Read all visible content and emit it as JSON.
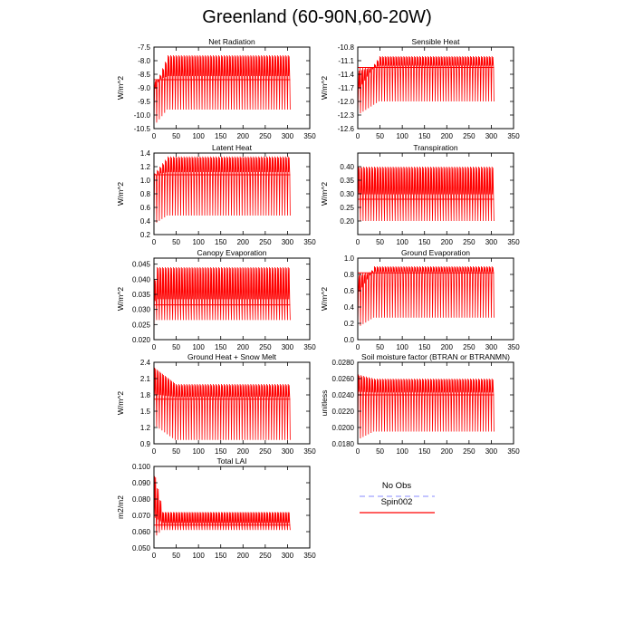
{
  "title": "Greenland (60-90N,60-20W)",
  "colors": {
    "spin": "#ff0000",
    "obs": "#9fa0ff",
    "axis": "#000000"
  },
  "legend": {
    "items": [
      {
        "name": "No Obs",
        "style": "dashed",
        "color": "#9fa0ff"
      },
      {
        "name": "Spin002",
        "style": "solid",
        "color": "#ff0000"
      }
    ]
  },
  "chart_data": [
    {
      "type": "line",
      "title": "Net Radiation",
      "ylabel": "W/m^2",
      "xlim": [
        0,
        350
      ],
      "ylim": [
        -10.5,
        -7.5
      ],
      "xticks": [
        0,
        50,
        100,
        150,
        200,
        250,
        300,
        350
      ],
      "yticks": [
        -10.5,
        -10.0,
        -9.5,
        -9.0,
        -8.5,
        -8.0,
        -7.5
      ],
      "ytick_labels": [
        "-10.5",
        "-10.0",
        "-9.5",
        "-9.0",
        "-8.5",
        "-8.0",
        "-7.5"
      ],
      "series": [
        {
          "x_end": 306,
          "n_cycles": 51,
          "start_low": -10.4,
          "start_high": -9.0,
          "final_low": -9.8,
          "final_high": -7.8,
          "mean_line": -8.7,
          "spin_cycles": 5
        }
      ]
    },
    {
      "type": "line",
      "title": "Sensible Heat",
      "ylabel": "W/m^2",
      "xlim": [
        0,
        350
      ],
      "ylim": [
        -12.6,
        -10.8
      ],
      "xticks": [
        0,
        50,
        100,
        150,
        200,
        250,
        300,
        350
      ],
      "yticks": [
        -12.6,
        -12.3,
        -12.0,
        -11.7,
        -11.4,
        -11.1,
        -10.8
      ],
      "ytick_labels": [
        "-12.6",
        "-12.3",
        "-12.0",
        "-11.7",
        "-11.4",
        "-11.1",
        "-10.8"
      ],
      "series": [
        {
          "x_end": 306,
          "n_cycles": 51,
          "start_low": -12.3,
          "start_high": -11.7,
          "final_low": -12.0,
          "final_high": -11.0,
          "mean_line": -11.25,
          "spin_cycles": 8
        }
      ]
    },
    {
      "type": "line",
      "title": "Latent Heat",
      "ylabel": "W/m^2",
      "xlim": [
        0,
        350
      ],
      "ylim": [
        0.2,
        1.4
      ],
      "xticks": [
        0,
        50,
        100,
        150,
        200,
        250,
        300,
        350
      ],
      "yticks": [
        0.2,
        0.4,
        0.6,
        0.8,
        1.0,
        1.2,
        1.4
      ],
      "ytick_labels": [
        "0.2",
        "0.4",
        "0.6",
        "0.8",
        "1.0",
        "1.2",
        "1.4"
      ],
      "series": [
        {
          "x_end": 306,
          "n_cycles": 51,
          "start_low": 0.35,
          "start_high": 1.1,
          "final_low": 0.48,
          "final_high": 1.35,
          "mean_line": 1.08,
          "spin_cycles": 5
        }
      ]
    },
    {
      "type": "line",
      "title": "Transpiration",
      "ylabel": "W/m^2",
      "xlim": [
        0,
        350
      ],
      "ylim": [
        0.15,
        0.45
      ],
      "xticks": [
        0,
        50,
        100,
        150,
        200,
        250,
        300,
        350
      ],
      "yticks": [
        0.2,
        0.25,
        0.3,
        0.35,
        0.4
      ],
      "ytick_labels": [
        "0.20",
        "0.25",
        "0.30",
        "0.35",
        "0.40"
      ],
      "series": [
        {
          "x_end": 306,
          "n_cycles": 51,
          "start_low": 0.2,
          "start_high": 0.4,
          "final_low": 0.2,
          "final_high": 0.4,
          "mean_line": 0.28,
          "spin_cycles": 1
        }
      ]
    },
    {
      "type": "line",
      "title": "Canopy Evaporation",
      "ylabel": "W/m^2",
      "xlim": [
        0,
        350
      ],
      "ylim": [
        0.02,
        0.047
      ],
      "xticks": [
        0,
        50,
        100,
        150,
        200,
        250,
        300,
        350
      ],
      "yticks": [
        0.02,
        0.025,
        0.03,
        0.035,
        0.04,
        0.045
      ],
      "ytick_labels": [
        "0.020",
        "0.025",
        "0.030",
        "0.035",
        "0.040",
        "0.045"
      ],
      "series": [
        {
          "x_end": 306,
          "n_cycles": 51,
          "start_low": 0.021,
          "start_high": 0.04,
          "final_low": 0.0265,
          "final_high": 0.044,
          "mean_line": 0.0315,
          "spin_cycles": 1
        }
      ]
    },
    {
      "type": "line",
      "title": "Ground Evaporation",
      "ylabel": "W/m^2",
      "xlim": [
        0,
        350
      ],
      "ylim": [
        0.0,
        1.0
      ],
      "xticks": [
        0,
        50,
        100,
        150,
        200,
        250,
        300,
        350
      ],
      "yticks": [
        0.0,
        0.2,
        0.4,
        0.6,
        0.8,
        1.0
      ],
      "ytick_labels": [
        "0.0",
        "0.2",
        "0.4",
        "0.6",
        "0.8",
        "1.0"
      ],
      "series": [
        {
          "x_end": 306,
          "n_cycles": 51,
          "start_low": 0.15,
          "start_high": 0.6,
          "final_low": 0.27,
          "final_high": 0.9,
          "mean_line": 0.82,
          "spin_cycles": 6
        }
      ]
    },
    {
      "type": "line",
      "title": "Ground Heat + Snow Melt",
      "ylabel": "W/m^2",
      "xlim": [
        0,
        350
      ],
      "ylim": [
        0.9,
        2.4
      ],
      "xticks": [
        0,
        50,
        100,
        150,
        200,
        250,
        300,
        350
      ],
      "yticks": [
        0.9,
        1.2,
        1.5,
        1.8,
        2.1,
        2.4
      ],
      "ytick_labels": [
        "0.9",
        "1.2",
        "1.5",
        "1.8",
        "2.1",
        "2.4"
      ],
      "series": [
        {
          "x_end": 306,
          "n_cycles": 51,
          "start_low": 1.25,
          "start_high": 2.3,
          "final_low": 0.97,
          "final_high": 2.0,
          "mean_line": 1.72,
          "spin_cycles": 8
        }
      ]
    },
    {
      "type": "line",
      "title": "Soil moisture factor (BTRAN or BTRANMN)",
      "ylabel": "unitless",
      "xlim": [
        0,
        350
      ],
      "ylim": [
        0.018,
        0.028
      ],
      "xticks": [
        0,
        50,
        100,
        150,
        200,
        250,
        300,
        350
      ],
      "yticks": [
        0.018,
        0.02,
        0.022,
        0.024,
        0.026,
        0.028
      ],
      "ytick_labels": [
        "0.0180",
        "0.0200",
        "0.0220",
        "0.0240",
        "0.0260",
        "0.0280"
      ],
      "series": [
        {
          "x_end": 306,
          "n_cycles": 51,
          "start_low": 0.0185,
          "start_high": 0.0265,
          "final_low": 0.0195,
          "final_high": 0.026,
          "mean_line": 0.024,
          "spin_cycles": 6
        }
      ]
    },
    {
      "type": "line",
      "title": "Total LAI",
      "ylabel": "m2/m2",
      "xlim": [
        0,
        350
      ],
      "ylim": [
        0.05,
        0.1
      ],
      "xticks": [
        0,
        50,
        100,
        150,
        200,
        250,
        300,
        350
      ],
      "yticks": [
        0.05,
        0.06,
        0.07,
        0.08,
        0.09,
        0.1
      ],
      "ytick_labels": [
        "0.050",
        "0.060",
        "0.070",
        "0.080",
        "0.090",
        "0.100"
      ],
      "series": [
        {
          "x_end": 306,
          "n_cycles": 51,
          "start_low": 0.056,
          "start_high": 0.094,
          "final_low": 0.061,
          "final_high": 0.072,
          "mean_line": 0.064,
          "spin_cycles": 3
        }
      ]
    }
  ]
}
